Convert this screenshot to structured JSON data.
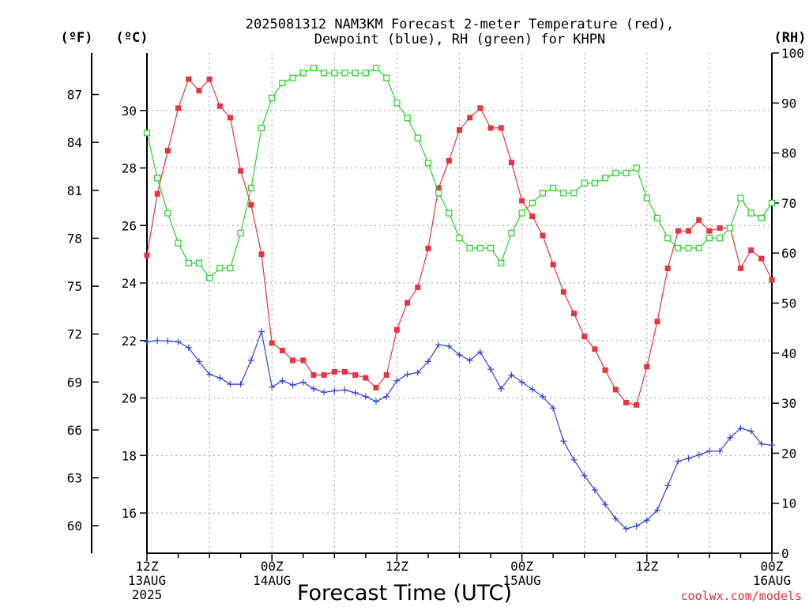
{
  "chart_data": {
    "type": "line",
    "title": [
      "2025081312 NAM3KM Forecast 2-meter Temperature (red),",
      "Dewpoint (blue), RH (green) for KHPN"
    ],
    "units": {
      "fahrenheit": "(ºF)",
      "celsius": "(ºC)",
      "rh": "(RH)"
    },
    "xlabel": "Forecast Time (UTC)",
    "credit": "coolwx.com/models",
    "x_ticks": [
      {
        "hour": 0,
        "lines": [
          "12Z",
          "13AUG",
          "2025"
        ]
      },
      {
        "hour": 12,
        "lines": [
          "00Z",
          "14AUG"
        ]
      },
      {
        "hour": 24,
        "lines": [
          "12Z"
        ]
      },
      {
        "hour": 36,
        "lines": [
          "00Z",
          "15AUG"
        ]
      },
      {
        "hour": 48,
        "lines": [
          "12Z"
        ]
      },
      {
        "hour": 60,
        "lines": [
          "00Z",
          "16AUG"
        ]
      }
    ],
    "xlim": [
      0,
      60
    ],
    "ylim_celsius": [
      14.6,
      32.0
    ],
    "ylim_rh": [
      0,
      100
    ],
    "celsius_ticks": [
      16,
      18,
      20,
      22,
      24,
      26,
      28,
      30
    ],
    "fahrenheit_ticks": [
      60,
      63,
      66,
      69,
      72,
      75,
      78,
      81,
      84,
      87
    ],
    "rh_ticks": [
      0,
      10,
      20,
      30,
      40,
      50,
      60,
      70,
      80,
      90,
      100
    ],
    "grid": true,
    "x_hours": [
      0,
      1,
      2,
      3,
      4,
      5,
      6,
      7,
      8,
      9,
      10,
      11,
      12,
      13,
      14,
      15,
      16,
      17,
      18,
      19,
      20,
      21,
      22,
      23,
      24,
      25,
      26,
      27,
      28,
      29,
      30,
      31,
      32,
      33,
      34,
      35,
      36,
      37,
      38,
      39,
      40,
      41,
      42,
      43,
      44,
      45,
      46,
      47,
      48,
      49,
      50,
      51,
      52,
      53,
      54,
      55,
      56,
      57,
      58,
      59,
      60
    ],
    "series": [
      {
        "name": "2-meter Temperature",
        "color": "#e8343c",
        "marker": "filled-square",
        "axis": "celsius",
        "values": [
          24.96,
          27.1,
          28.6,
          30.08,
          31.09,
          30.69,
          31.09,
          30.15,
          29.75,
          27.9,
          26.72,
          25.0,
          21.91,
          21.65,
          21.31,
          21.31,
          20.8,
          20.8,
          20.91,
          20.91,
          20.8,
          20.7,
          20.36,
          20.8,
          22.37,
          23.31,
          23.85,
          25.2,
          27.3,
          28.25,
          29.32,
          29.75,
          30.08,
          29.39,
          29.39,
          28.19,
          26.86,
          26.32,
          25.65,
          24.64,
          23.69,
          22.94,
          22.14,
          21.7,
          20.97,
          20.29,
          19.84,
          19.76,
          21.09,
          22.66,
          24.51,
          25.81,
          25.81,
          26.19,
          25.81,
          25.91,
          25.91,
          24.51,
          25.14,
          24.85,
          24.11
        ]
      },
      {
        "name": "Dewpoint",
        "color": "#2b44e0",
        "marker": "plus",
        "axis": "celsius",
        "values": [
          21.95,
          22.0,
          21.98,
          21.95,
          21.75,
          21.27,
          20.82,
          20.7,
          20.48,
          20.48,
          21.31,
          22.31,
          20.38,
          20.6,
          20.45,
          20.55,
          20.32,
          20.2,
          20.25,
          20.28,
          20.18,
          20.05,
          19.88,
          20.05,
          20.6,
          20.82,
          20.88,
          21.27,
          21.85,
          21.8,
          21.5,
          21.31,
          21.6,
          21.0,
          20.32,
          20.8,
          20.55,
          20.3,
          20.05,
          19.65,
          18.5,
          17.85,
          17.3,
          16.8,
          16.3,
          15.8,
          15.45,
          15.55,
          15.75,
          16.1,
          16.95,
          17.8,
          17.9,
          18.02,
          18.15,
          18.15,
          18.62,
          18.95,
          18.85,
          18.4,
          18.36
        ]
      },
      {
        "name": "RH",
        "color": "#22d422",
        "marker": "open-square",
        "axis": "rh",
        "values": [
          84,
          75,
          68,
          62,
          58,
          58,
          55,
          57,
          57,
          64,
          73,
          85,
          91,
          94,
          95,
          96,
          97,
          96,
          96,
          96,
          96,
          96,
          97,
          95,
          90,
          87,
          83,
          78,
          72,
          68,
          63,
          61,
          61,
          61,
          58,
          64,
          68,
          70,
          72,
          73,
          72,
          72,
          74,
          74,
          75,
          76,
          76,
          77,
          71,
          67,
          63,
          61,
          61,
          61,
          63,
          63,
          65,
          71,
          68,
          67,
          70
        ]
      }
    ]
  }
}
